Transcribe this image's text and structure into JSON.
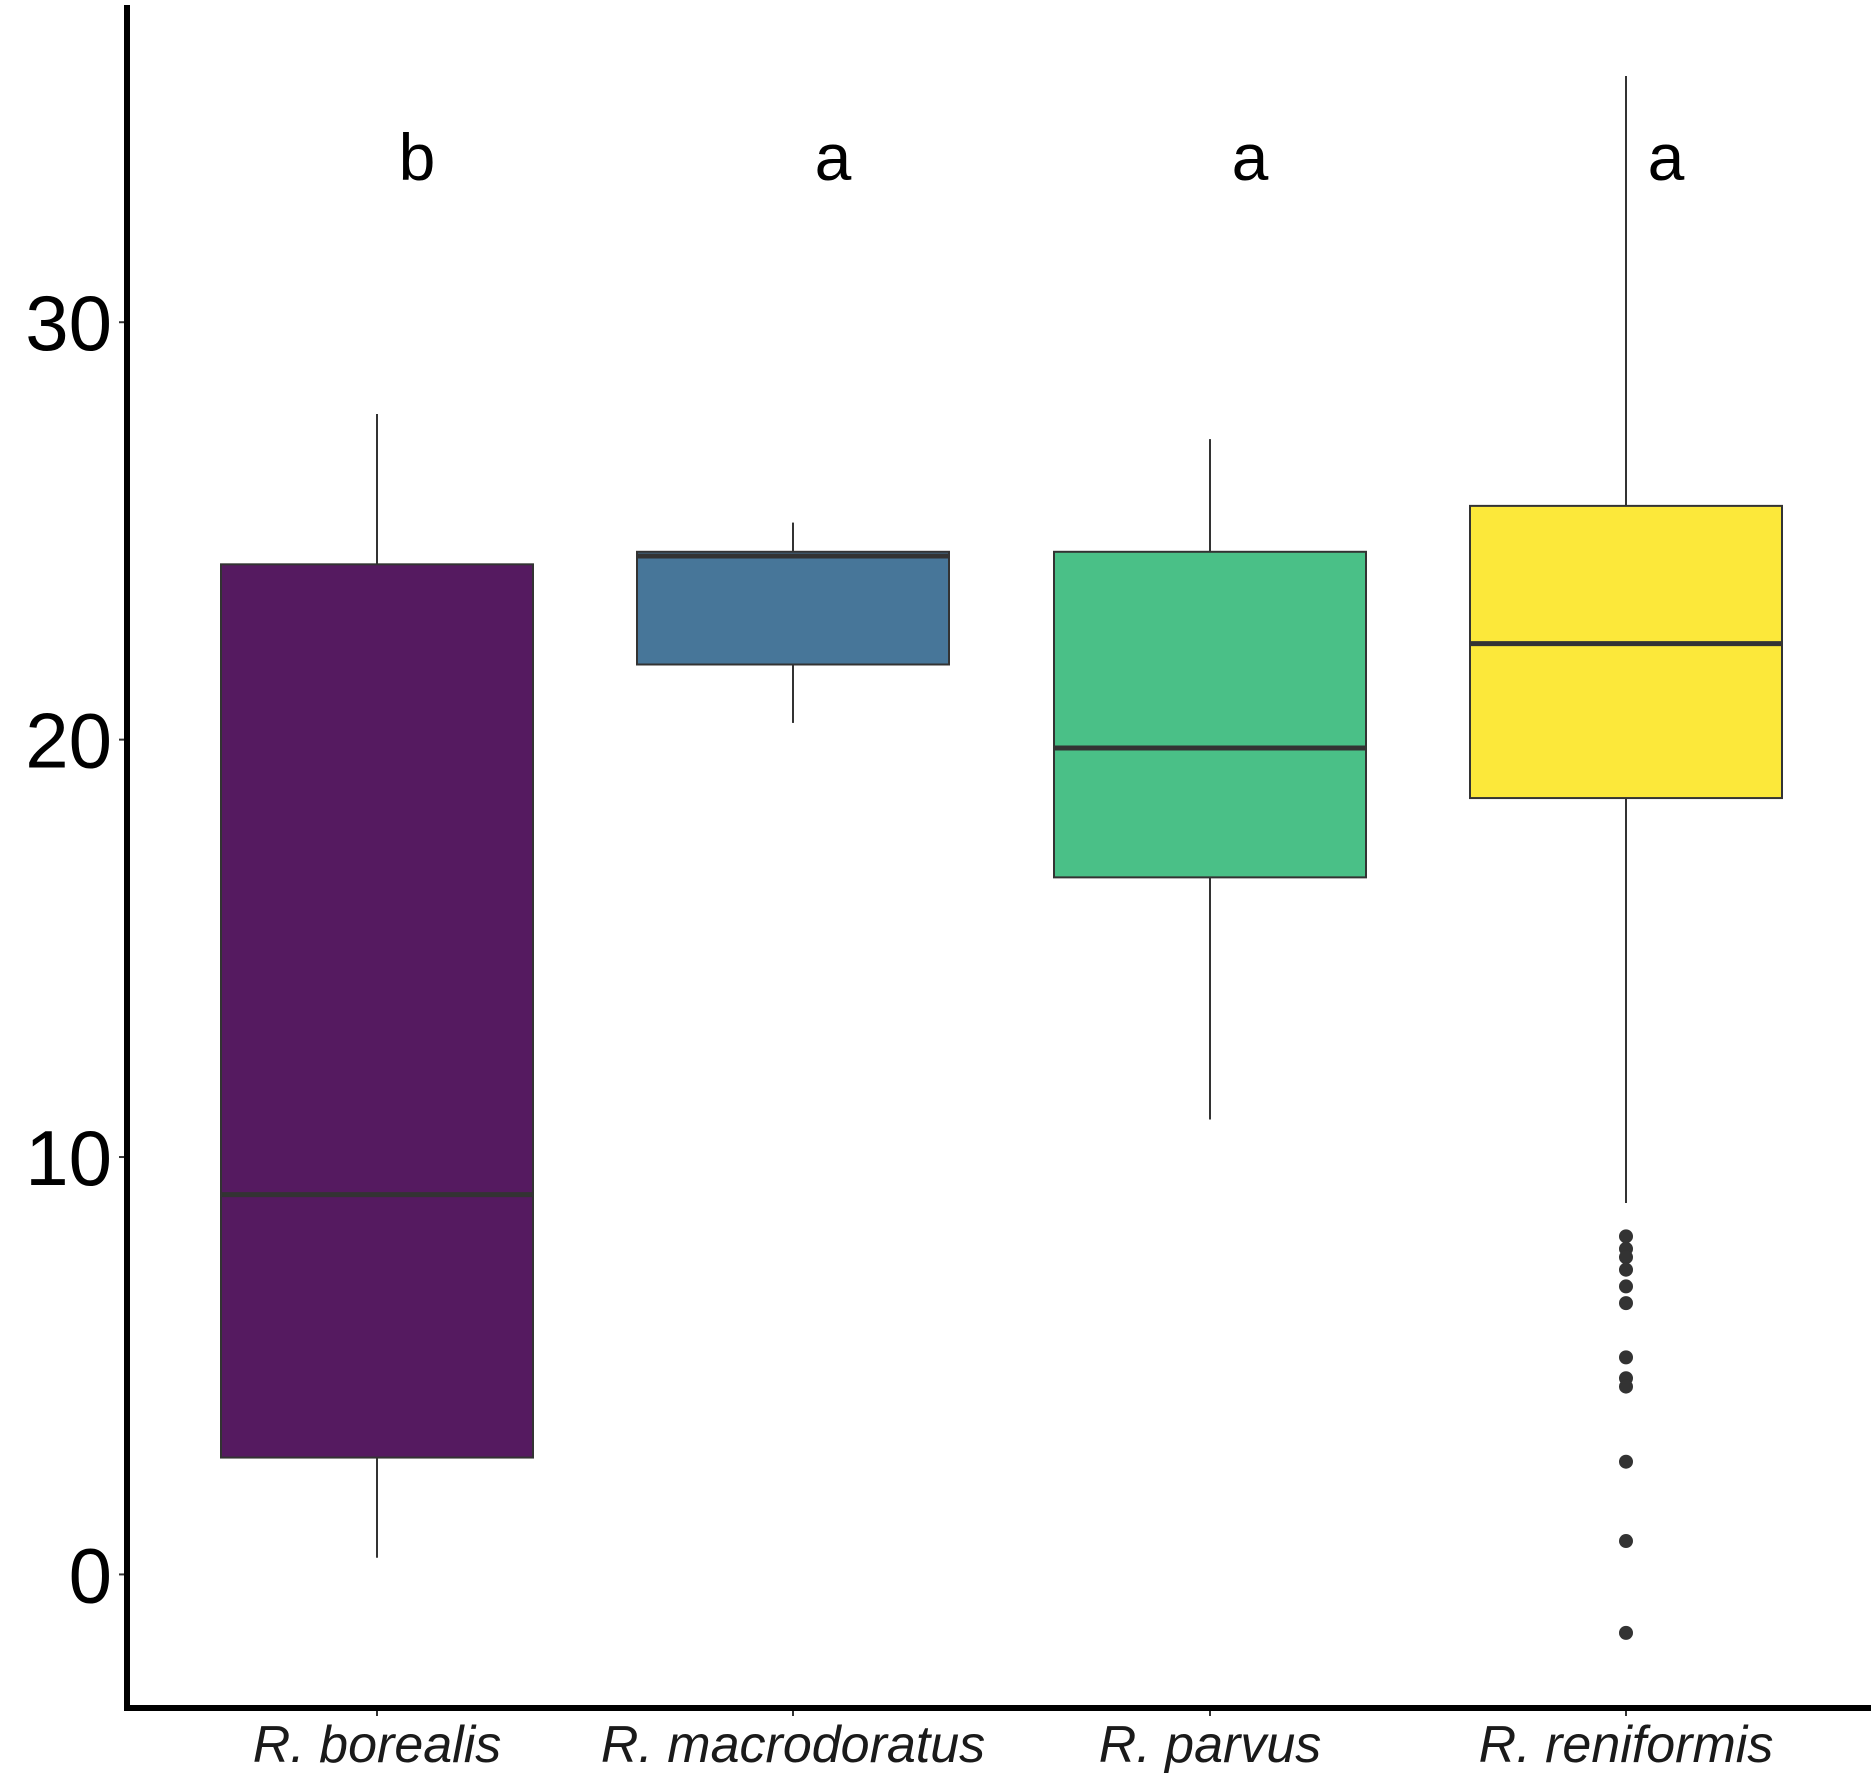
{
  "chart_data": {
    "type": "boxplot",
    "title": "",
    "xlabel": "",
    "ylabel": "",
    "ylim": [
      -3.2,
      37.6
    ],
    "yticks": [
      0,
      10,
      20,
      30
    ],
    "grid": false,
    "legend": "none",
    "categories": [
      "R. borealis",
      "R. macrodoratus",
      "R. parvus",
      "R. reniformis"
    ],
    "series": [
      {
        "category": "R. borealis",
        "min": 0.4,
        "q1": 2.8,
        "median": 9.1,
        "q3": 24.2,
        "max": 27.8,
        "outliers": [],
        "color": "#551A60",
        "letter": "b"
      },
      {
        "category": "R. macrodoratus",
        "min": 20.4,
        "q1": 21.8,
        "median": 24.4,
        "q3": 24.5,
        "max": 25.2,
        "outliers": [],
        "color": "#477699",
        "letter": "a"
      },
      {
        "category": "R. parvus",
        "min": 10.9,
        "q1": 16.7,
        "median": 19.8,
        "q3": 24.5,
        "max": 27.2,
        "outliers": [],
        "color": "#4AC087",
        "letter": "a"
      },
      {
        "category": "R. reniformis",
        "min": 8.9,
        "q1": 18.6,
        "median": 22.3,
        "q3": 25.6,
        "max": 35.9,
        "outliers": [
          8.1,
          7.8,
          7.6,
          7.3,
          6.9,
          6.5,
          5.2,
          4.7,
          4.5,
          2.7,
          0.8,
          -1.4
        ],
        "color": "#FCE83A",
        "letter": "a"
      }
    ]
  }
}
